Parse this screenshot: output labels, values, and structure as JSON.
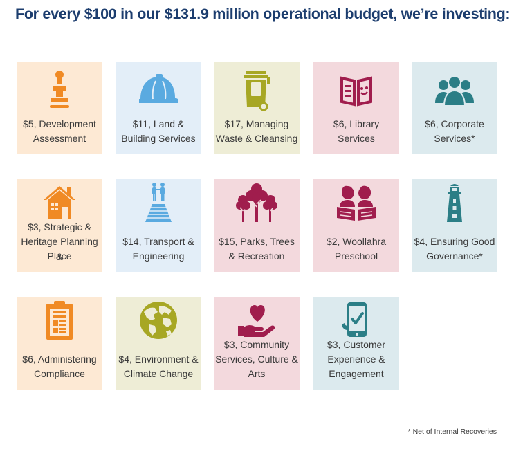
{
  "title": "For every $100 in our $131.9 million operational budget, we’re investing:",
  "colors": {
    "title": "#1c3d6e",
    "orange_tile": "#fde9d4",
    "orange_icon": "#f08a24",
    "blue_tile": "#e3eef8",
    "blue_icon": "#5aaae0",
    "olive_tile": "#eeedd6",
    "olive_icon": "#a7a724",
    "pink_tile": "#f3d9dd",
    "pink_icon": "#a01d4d",
    "teal_tile": "#dceaee",
    "teal_icon": "#2b7e86"
  },
  "tiles": [
    {
      "icon": "stamp-icon",
      "line1": "$5, Development",
      "line2": "Assessment"
    },
    {
      "icon": "hard-hat-icon",
      "line1": "$11, Land &",
      "line2": "Building Services"
    },
    {
      "icon": "wheelie-bin-icon",
      "line1": "$17, Managing",
      "line2": "Waste & Cleansing"
    },
    {
      "icon": "book-icon",
      "line1": "$6, Library",
      "line2": "Services"
    },
    {
      "icon": "people-group-icon",
      "line1": "$6, Corporate",
      "line2": "Services*"
    },
    {
      "icon": "house-icon",
      "line1": "$3, Strategic &",
      "line2": "Heritage Planning &",
      "line3": "Place"
    },
    {
      "icon": "road-people-icon",
      "line1": "$14, Transport &",
      "line2": "Engineering"
    },
    {
      "icon": "trees-icon",
      "line1": "$15, Parks, Trees",
      "line2": "& Recreation"
    },
    {
      "icon": "children-reading-icon",
      "line1": "$2, Woollahra",
      "line2": "Preschool"
    },
    {
      "icon": "lighthouse-icon",
      "line1": "$4, Ensuring Good",
      "line2": "Governance*"
    },
    {
      "icon": "clipboard-icon",
      "line1": "$6, Administering",
      "line2": "Compliance"
    },
    {
      "icon": "globe-icon",
      "line1": "$4, Environment &",
      "line2": "Climate Change"
    },
    {
      "icon": "heart-hand-icon",
      "line1": "$3, Community",
      "line2": "Services, Culture &",
      "line3": "Arts"
    },
    {
      "icon": "mobile-check-icon",
      "line1": "$3, Customer",
      "line2": "Experience &",
      "line3": "Engagement"
    }
  ],
  "footnote": "* Net of Internal Recoveries"
}
